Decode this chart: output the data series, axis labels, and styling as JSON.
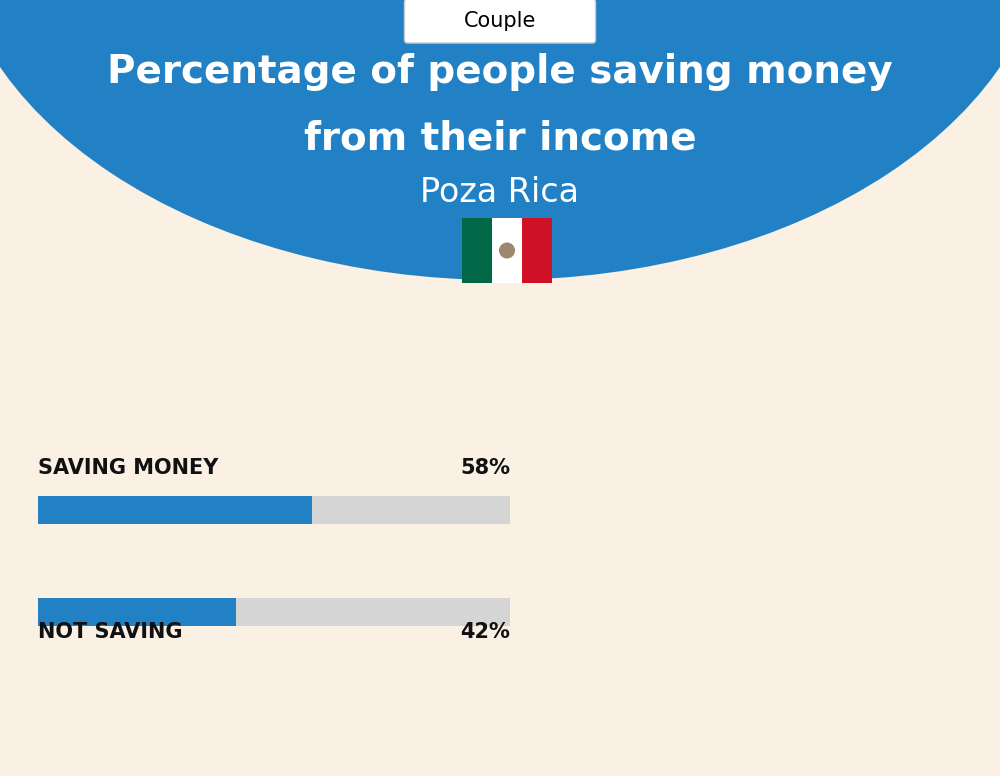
{
  "title_line1": "Percentage of people saving money",
  "title_line2": "from their income",
  "city": "Poza Rica",
  "category_label": "Couple",
  "bar1_label": "SAVING MONEY",
  "bar1_value": 58,
  "bar1_pct": "58%",
  "bar2_label": "NOT SAVING",
  "bar2_value": 42,
  "bar2_pct": "42%",
  "bg_blue": "#2181C4",
  "bg_cream": "#FAF0E4",
  "bar_blue": "#2181C4",
  "bar_gray": "#D5D5D5",
  "title_color": "#FFFFFF",
  "city_color": "#FFFFFF",
  "label_color": "#111111",
  "pct_color": "#111111",
  "flag_green": "#006847",
  "flag_white": "#FFFFFF",
  "flag_red": "#CE1126",
  "fig_width": 10.0,
  "fig_height": 7.76,
  "dpi": 100
}
